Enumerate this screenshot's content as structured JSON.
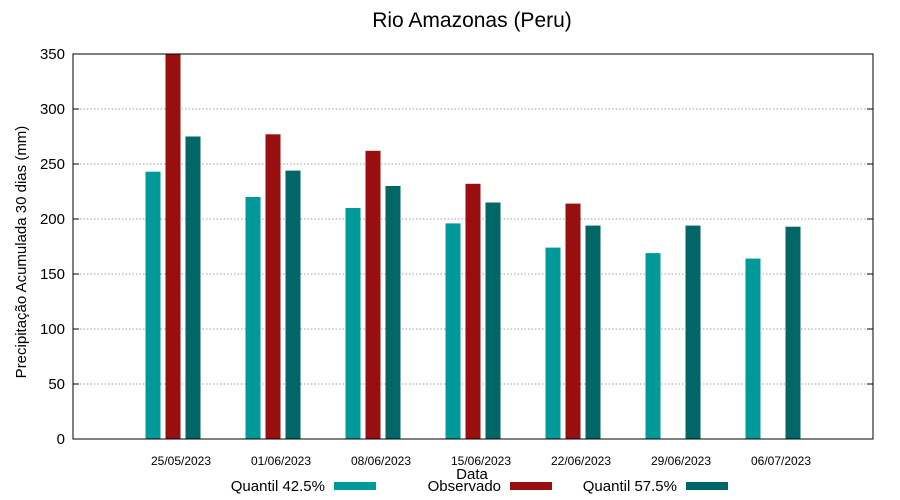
{
  "chart_data": {
    "type": "bar",
    "title": "Rio Amazonas (Peru)",
    "xlabel": "Data",
    "ylabel": "Precipitação Acumulada 30 dias (mm)",
    "ylim": [
      0,
      350
    ],
    "yticks": [
      0,
      50,
      100,
      150,
      200,
      250,
      300,
      350
    ],
    "grid": true,
    "legend_position": "bottom",
    "categories": [
      "25/05/2023",
      "01/06/2023",
      "08/06/2023",
      "15/06/2023",
      "22/06/2023",
      "29/06/2023",
      "06/07/2023"
    ],
    "series": [
      {
        "name": "Quantil 42.5%",
        "color": "#009999",
        "values": [
          243,
          220,
          210,
          196,
          174,
          169,
          164
        ]
      },
      {
        "name": "Observado",
        "color": "#990f0f",
        "values": [
          350,
          277,
          262,
          232,
          214,
          null,
          null
        ]
      },
      {
        "name": "Quantil 57.5%",
        "color": "#006666",
        "values": [
          275,
          244,
          230,
          215,
          194,
          194,
          193
        ]
      }
    ]
  }
}
